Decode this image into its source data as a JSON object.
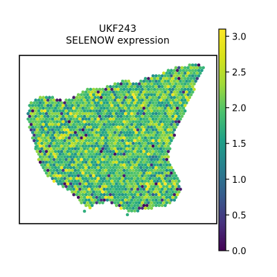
{
  "chart_data": {
    "type": "scatter",
    "title": "UKF243",
    "subtitle": "SELENOW expression",
    "xlabel": "",
    "ylabel": "",
    "frame": true,
    "grid": false,
    "colormap": "viridis",
    "colorbar": {
      "range": [
        0.0,
        3.1
      ],
      "ticks": [
        "0.0",
        "0.5",
        "1.0",
        "1.5",
        "2.0",
        "2.5",
        "3.0"
      ],
      "placement": "right"
    },
    "spots": {
      "marker": "hexagon",
      "typical_value": 1.9,
      "value_range": [
        0.0,
        3.1
      ],
      "description_of_spread": "most spots between 1.5 and 2.5, scattered low-value spots (~0.0-0.5) mainly along edges, a few high-value spots (~3.0)"
    }
  }
}
